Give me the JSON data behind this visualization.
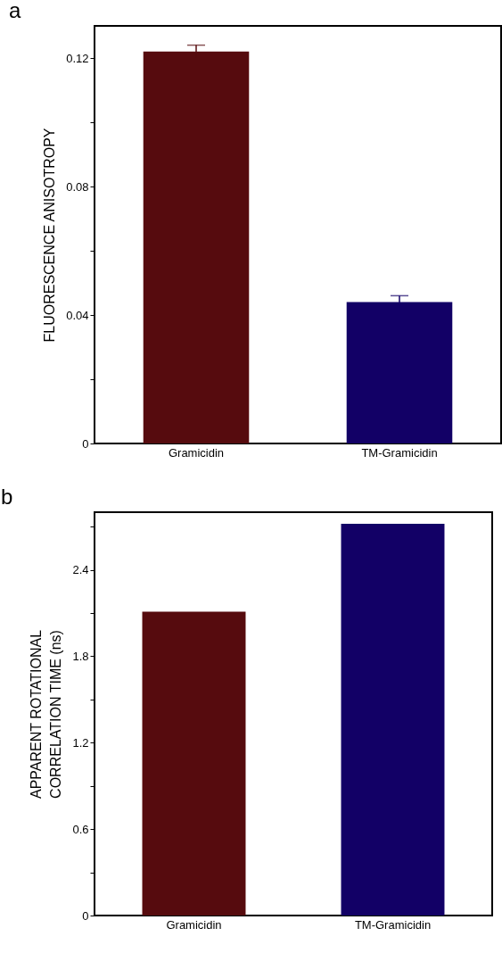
{
  "chart_data": [
    {
      "type": "bar",
      "title": "a",
      "ylabel": "FLUORESCENCE ANISOTROPY",
      "categories": [
        "Gramicidin",
        "TM-Gramicidin"
      ],
      "values": [
        0.122,
        0.044
      ],
      "errors": [
        0.002,
        0.002
      ],
      "colors": [
        "#560b0e",
        "#120066"
      ],
      "ylim": [
        0,
        0.13
      ],
      "yticks": [
        0,
        {
          "value": 0.02,
          "label": null
        },
        0.04,
        {
          "value": 0.06,
          "label": null
        },
        0.08,
        {
          "value": 0.1,
          "label": null
        },
        0.12
      ],
      "grid": false,
      "legend": false
    },
    {
      "type": "bar",
      "title": "b",
      "ylabel": "APPARENT  ROTATIONAL\nCORRELATION  TIME (ns)",
      "categories": [
        "Gramicidin",
        "TM-Gramicidin"
      ],
      "values": [
        2.11,
        2.72
      ],
      "colors": [
        "#560b0e",
        "#120066"
      ],
      "ylim": [
        0,
        2.8
      ],
      "yticks": [
        0,
        {
          "value": 0.3,
          "label": null
        },
        0.6,
        {
          "value": 0.9,
          "label": null
        },
        1.2,
        {
          "value": 1.5,
          "label": null
        },
        1.8,
        {
          "value": 2.1,
          "label": null
        },
        2.4,
        {
          "value": 2.7,
          "label": null
        }
      ],
      "grid": false,
      "legend": false
    }
  ]
}
